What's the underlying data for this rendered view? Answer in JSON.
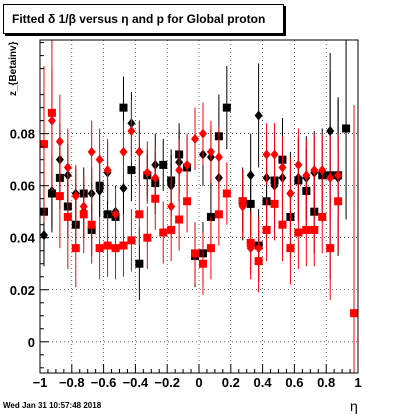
{
  "title": "Fitted δ 1/β versus η and p for Global proton",
  "timestamp": "Wed Jan 31 10:57:48 2018",
  "chart_data": {
    "type": "scatter",
    "title": "Fitted δ 1/β versus η and p for Global proton",
    "xlabel": "η",
    "ylabel": "z_{Betainv}",
    "xlim": [
      -1,
      1
    ],
    "ylim": [
      -0.012,
      0.116
    ],
    "x_ticks": [
      "−1",
      "−0.8",
      "−0.6",
      "−0.4",
      "−0.2",
      "0",
      "0.2",
      "0.4",
      "0.6",
      "0.8",
      "1"
    ],
    "y_ticks": [
      "0",
      "0.02",
      "0.04",
      "0.06",
      "0.08"
    ],
    "grid": true,
    "series": [
      {
        "color": "#000000",
        "marker": "square",
        "points": [
          {
            "x": -0.975,
            "y": 0.05,
            "err": 0.02
          },
          {
            "x": -0.925,
            "y": 0.057,
            "err": 0.015
          },
          {
            "x": -0.875,
            "y": 0.063,
            "err": 0.012
          },
          {
            "x": -0.825,
            "y": 0.052,
            "err": 0.012
          },
          {
            "x": -0.775,
            "y": 0.045,
            "err": 0.01
          },
          {
            "x": -0.725,
            "y": 0.057,
            "err": 0.01
          },
          {
            "x": -0.675,
            "y": 0.043,
            "err": 0.01
          },
          {
            "x": -0.625,
            "y": 0.06,
            "err": 0.012
          },
          {
            "x": -0.575,
            "y": 0.049,
            "err": 0.01
          },
          {
            "x": -0.525,
            "y": 0.048,
            "err": 0.01
          },
          {
            "x": -0.475,
            "y": 0.09,
            "err": 0.012
          },
          {
            "x": -0.425,
            "y": 0.066,
            "err": 0.012
          },
          {
            "x": -0.375,
            "y": 0.03,
            "err": 0.014
          },
          {
            "x": -0.325,
            "y": 0.064,
            "err": 0.008
          },
          {
            "x": -0.275,
            "y": 0.061,
            "err": 0.012
          },
          {
            "x": -0.225,
            "y": 0.068,
            "err": 0.01
          },
          {
            "x": -0.175,
            "y": 0.062,
            "err": 0.012
          },
          {
            "x": -0.125,
            "y": 0.072,
            "err": 0.012
          },
          {
            "x": -0.075,
            "y": 0.067,
            "err": 0.012
          },
          {
            "x": -0.025,
            "y": 0.033,
            "err": 0.012
          },
          {
            "x": 0.025,
            "y": 0.034,
            "err": 0.012
          },
          {
            "x": 0.075,
            "y": 0.048,
            "err": 0.014
          },
          {
            "x": 0.125,
            "y": 0.079,
            "err": 0.016
          },
          {
            "x": 0.175,
            "y": 0.09,
            "err": 0.016
          },
          {
            "x": 0.275,
            "y": 0.054,
            "err": 0.012
          },
          {
            "x": 0.325,
            "y": 0.053,
            "err": 0.012
          },
          {
            "x": 0.375,
            "y": 0.037,
            "err": 0.014
          },
          {
            "x": 0.425,
            "y": 0.054,
            "err": 0.014
          },
          {
            "x": 0.475,
            "y": 0.062,
            "err": 0.014
          },
          {
            "x": 0.525,
            "y": 0.07,
            "err": 0.016
          },
          {
            "x": 0.575,
            "y": 0.048,
            "err": 0.016
          },
          {
            "x": 0.625,
            "y": 0.062,
            "err": 0.016
          },
          {
            "x": 0.675,
            "y": 0.058,
            "err": 0.016
          },
          {
            "x": 0.725,
            "y": 0.05,
            "err": 0.016
          },
          {
            "x": 0.775,
            "y": 0.064,
            "err": 0.018
          },
          {
            "x": 0.825,
            "y": 0.064,
            "err": 0.04
          },
          {
            "x": 0.875,
            "y": 0.064,
            "err": 0.03
          },
          {
            "x": 0.925,
            "y": 0.082,
            "err": 0.035
          }
        ]
      },
      {
        "color": "#000000",
        "marker": "diamond",
        "points": [
          {
            "x": -0.975,
            "y": 0.041,
            "err": 0.012
          },
          {
            "x": -0.925,
            "y": 0.058,
            "err": 0.014
          },
          {
            "x": -0.875,
            "y": 0.07,
            "err": 0.014
          },
          {
            "x": -0.825,
            "y": 0.064,
            "err": 0.012
          },
          {
            "x": -0.775,
            "y": 0.057,
            "err": 0.01
          },
          {
            "x": -0.725,
            "y": 0.05,
            "err": 0.01
          },
          {
            "x": -0.675,
            "y": 0.057,
            "err": 0.01
          },
          {
            "x": -0.625,
            "y": 0.058,
            "err": 0.01
          },
          {
            "x": -0.575,
            "y": 0.065,
            "err": 0.012
          },
          {
            "x": -0.525,
            "y": 0.05,
            "err": 0.01
          },
          {
            "x": -0.475,
            "y": 0.059,
            "err": 0.012
          },
          {
            "x": -0.425,
            "y": 0.084,
            "err": 0.012
          },
          {
            "x": -0.375,
            "y": 0.073,
            "err": 0.012
          },
          {
            "x": -0.325,
            "y": 0.064,
            "err": 0.01
          },
          {
            "x": -0.275,
            "y": 0.068,
            "err": 0.012
          },
          {
            "x": -0.175,
            "y": 0.06,
            "err": 0.012
          },
          {
            "x": -0.125,
            "y": 0.069,
            "err": 0.012
          },
          {
            "x": 0.025,
            "y": 0.072,
            "err": 0.012
          },
          {
            "x": 0.075,
            "y": 0.071,
            "err": 0.012
          },
          {
            "x": 0.125,
            "y": 0.063,
            "err": 0.014
          },
          {
            "x": 0.275,
            "y": 0.053,
            "err": 0.014
          },
          {
            "x": 0.325,
            "y": 0.064,
            "err": 0.016
          },
          {
            "x": 0.375,
            "y": 0.087,
            "err": 0.02
          },
          {
            "x": 0.425,
            "y": 0.063,
            "err": 0.016
          },
          {
            "x": 0.475,
            "y": 0.06,
            "err": 0.016
          },
          {
            "x": 0.525,
            "y": 0.063,
            "err": 0.016
          },
          {
            "x": 0.575,
            "y": 0.057,
            "err": 0.016
          },
          {
            "x": 0.625,
            "y": 0.063,
            "err": 0.016
          },
          {
            "x": 0.675,
            "y": 0.063,
            "err": 0.016
          },
          {
            "x": 0.725,
            "y": 0.065,
            "err": 0.016
          },
          {
            "x": 0.825,
            "y": 0.081,
            "err": 0.03
          },
          {
            "x": 0.875,
            "y": 0.063,
            "err": 0.03
          }
        ]
      },
      {
        "color": "#ff0000",
        "marker": "square",
        "points": [
          {
            "x": -0.975,
            "y": 0.076,
            "err": 0.03
          },
          {
            "x": -0.925,
            "y": 0.088,
            "err": 0.03
          },
          {
            "x": -0.875,
            "y": 0.056,
            "err": 0.02
          },
          {
            "x": -0.825,
            "y": 0.048,
            "err": 0.02
          },
          {
            "x": -0.775,
            "y": 0.036,
            "err": 0.015
          },
          {
            "x": -0.725,
            "y": 0.049,
            "err": 0.015
          },
          {
            "x": -0.675,
            "y": 0.045,
            "err": 0.015
          },
          {
            "x": -0.625,
            "y": 0.036,
            "err": 0.012
          },
          {
            "x": -0.575,
            "y": 0.037,
            "err": 0.012
          },
          {
            "x": -0.525,
            "y": 0.036,
            "err": 0.012
          },
          {
            "x": -0.475,
            "y": 0.037,
            "err": 0.012
          },
          {
            "x": -0.425,
            "y": 0.039,
            "err": 0.012
          },
          {
            "x": -0.375,
            "y": 0.049,
            "err": 0.012
          },
          {
            "x": -0.325,
            "y": 0.04,
            "err": 0.012
          },
          {
            "x": -0.275,
            "y": 0.055,
            "err": 0.012
          },
          {
            "x": -0.225,
            "y": 0.042,
            "err": 0.012
          },
          {
            "x": -0.175,
            "y": 0.043,
            "err": 0.012
          },
          {
            "x": -0.125,
            "y": 0.047,
            "err": 0.012
          },
          {
            "x": -0.075,
            "y": 0.054,
            "err": 0.012
          },
          {
            "x": -0.025,
            "y": 0.034,
            "err": 0.012
          },
          {
            "x": 0.025,
            "y": 0.03,
            "err": 0.012
          },
          {
            "x": 0.075,
            "y": 0.036,
            "err": 0.012
          },
          {
            "x": 0.125,
            "y": 0.049,
            "err": 0.012
          },
          {
            "x": 0.175,
            "y": 0.057,
            "err": 0.012
          },
          {
            "x": 0.275,
            "y": 0.054,
            "err": 0.012
          },
          {
            "x": 0.325,
            "y": 0.038,
            "err": 0.012
          },
          {
            "x": 0.375,
            "y": 0.031,
            "err": 0.012
          },
          {
            "x": 0.425,
            "y": 0.043,
            "err": 0.012
          },
          {
            "x": 0.475,
            "y": 0.053,
            "err": 0.014
          },
          {
            "x": 0.525,
            "y": 0.045,
            "err": 0.014
          },
          {
            "x": 0.575,
            "y": 0.036,
            "err": 0.014
          },
          {
            "x": 0.625,
            "y": 0.042,
            "err": 0.014
          },
          {
            "x": 0.675,
            "y": 0.043,
            "err": 0.014
          },
          {
            "x": 0.725,
            "y": 0.043,
            "err": 0.014
          },
          {
            "x": 0.775,
            "y": 0.048,
            "err": 0.014
          },
          {
            "x": 0.825,
            "y": 0.036,
            "err": 0.02
          },
          {
            "x": 0.875,
            "y": 0.054,
            "err": 0.02
          },
          {
            "x": 0.975,
            "y": 0.011,
            "err": 0.08
          }
        ]
      },
      {
        "color": "#ff0000",
        "marker": "diamond",
        "points": [
          {
            "x": -0.975,
            "y": 0.076,
            "err": 0.02
          },
          {
            "x": -0.925,
            "y": 0.085,
            "err": 0.02
          },
          {
            "x": -0.875,
            "y": 0.077,
            "err": 0.018
          },
          {
            "x": -0.825,
            "y": 0.067,
            "err": 0.015
          },
          {
            "x": -0.775,
            "y": 0.056,
            "err": 0.012
          },
          {
            "x": -0.725,
            "y": 0.052,
            "err": 0.012
          },
          {
            "x": -0.675,
            "y": 0.073,
            "err": 0.012
          },
          {
            "x": -0.625,
            "y": 0.07,
            "err": 0.012
          },
          {
            "x": -0.575,
            "y": 0.066,
            "err": 0.012
          },
          {
            "x": -0.525,
            "y": 0.049,
            "err": 0.01
          },
          {
            "x": -0.475,
            "y": 0.073,
            "err": 0.012
          },
          {
            "x": -0.425,
            "y": 0.081,
            "err": 0.012
          },
          {
            "x": -0.375,
            "y": 0.073,
            "err": 0.012
          },
          {
            "x": -0.325,
            "y": 0.065,
            "err": 0.012
          },
          {
            "x": -0.275,
            "y": 0.063,
            "err": 0.012
          },
          {
            "x": -0.175,
            "y": 0.052,
            "err": 0.012
          },
          {
            "x": -0.125,
            "y": 0.066,
            "err": 0.012
          },
          {
            "x": -0.075,
            "y": 0.068,
            "err": 0.012
          },
          {
            "x": -0.025,
            "y": 0.078,
            "err": 0.012
          },
          {
            "x": 0.025,
            "y": 0.08,
            "err": 0.012
          },
          {
            "x": 0.075,
            "y": 0.073,
            "err": 0.012
          },
          {
            "x": 0.125,
            "y": 0.071,
            "err": 0.012
          },
          {
            "x": 0.275,
            "y": 0.052,
            "err": 0.012
          },
          {
            "x": 0.325,
            "y": 0.036,
            "err": 0.012
          },
          {
            "x": 0.375,
            "y": 0.036,
            "err": 0.012
          },
          {
            "x": 0.425,
            "y": 0.072,
            "err": 0.012
          },
          {
            "x": 0.475,
            "y": 0.072,
            "err": 0.012
          },
          {
            "x": 0.525,
            "y": 0.067,
            "err": 0.012
          },
          {
            "x": 0.575,
            "y": 0.057,
            "err": 0.014
          },
          {
            "x": 0.625,
            "y": 0.068,
            "err": 0.014
          },
          {
            "x": 0.675,
            "y": 0.064,
            "err": 0.014
          },
          {
            "x": 0.725,
            "y": 0.066,
            "err": 0.014
          },
          {
            "x": 0.775,
            "y": 0.066,
            "err": 0.014
          },
          {
            "x": 0.825,
            "y": 0.063,
            "err": 0.016
          },
          {
            "x": 0.875,
            "y": 0.064,
            "err": 0.016
          }
        ]
      }
    ]
  }
}
